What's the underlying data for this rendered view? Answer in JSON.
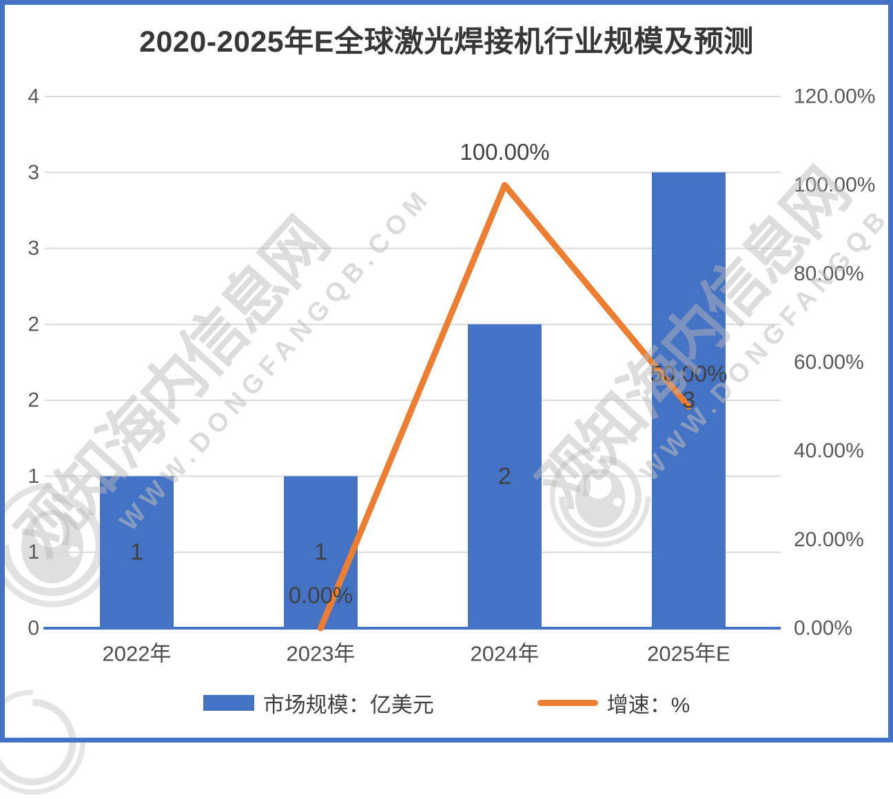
{
  "title": "2020-2025年E全球激光焊接机行业规模及预测",
  "watermark": {
    "site_name": "观知海内信息网",
    "site_url": "WWW.DONGFANGQB.COM"
  },
  "legend": [
    {
      "label": "市场规模：亿美元",
      "type": "bar",
      "color": "#4472C4"
    },
    {
      "label": "增速：%",
      "type": "line",
      "color": "#ED7D31"
    }
  ],
  "chart_data": {
    "type": "bar",
    "title": "2020-2025年E全球激光焊接机行业规模及预测",
    "categories": [
      "2022年",
      "2023年",
      "2024年",
      "2025年E"
    ],
    "series": [
      {
        "name": "市场规模：亿美元",
        "type": "bar",
        "axis": "left",
        "color": "#4472C4",
        "values": [
          1,
          1,
          2,
          3
        ],
        "labels": [
          "1",
          "1",
          "2",
          "3"
        ]
      },
      {
        "name": "增速：%",
        "type": "line",
        "axis": "right",
        "color": "#ED7D31",
        "values": [
          null,
          0,
          100,
          50
        ],
        "labels": [
          null,
          "0.00%",
          "100.00%",
          "50.00%"
        ]
      }
    ],
    "left_axis": {
      "min": 0,
      "max": 3.5,
      "step": 0.5,
      "tick_labels": [
        "0",
        "1",
        "1",
        "2",
        "2",
        "3",
        "3",
        "4"
      ]
    },
    "right_axis": {
      "min": 0,
      "max": 120,
      "step": 20,
      "tick_labels": [
        "0.00%",
        "20.00%",
        "40.00%",
        "60.00%",
        "80.00%",
        "100.00%",
        "120.00%"
      ]
    },
    "grid": true,
    "legend_position": "bottom"
  }
}
